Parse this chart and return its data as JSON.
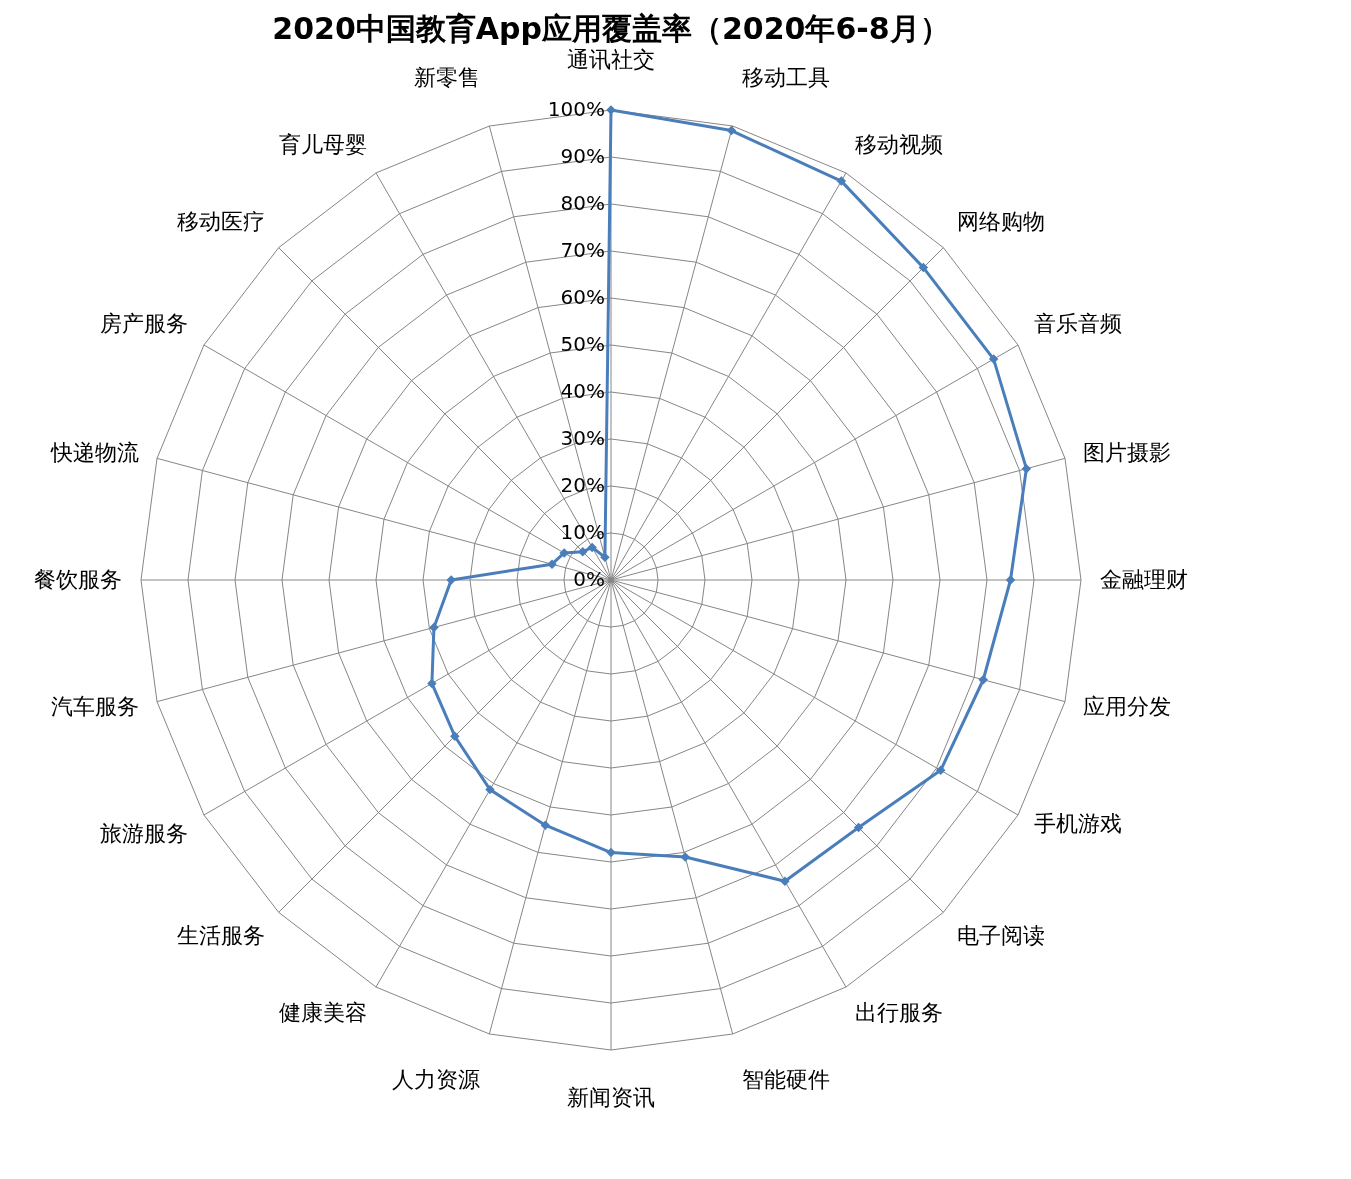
{
  "chart_data": {
    "type": "radar",
    "title": "2020中国教育App应用覆盖率（2020年6-8月）",
    "categories": [
      "通讯社交",
      "移动工具",
      "移动视频",
      "网络购物",
      "音乐音频",
      "图片摄影",
      "金融理财",
      "应用分发",
      "手机游戏",
      "电子阅读",
      "出行服务",
      "智能硬件",
      "新闻资讯",
      "人力资源",
      "健康美容",
      "生活服务",
      "旅游服务",
      "汽车服务",
      "餐饮服务",
      "快递物流",
      "房产服务",
      "移动医疗",
      "育儿母婴",
      "新零售"
    ],
    "series": [
      {
        "color": "#4a7ebb",
        "values": [
          100,
          99,
          98,
          94,
          94,
          91.5,
          85,
          82,
          81,
          74.5,
          74,
          61,
          58,
          54,
          51.5,
          47,
          44,
          39,
          34,
          13,
          11.5,
          8.5,
          8,
          5
        ]
      }
    ],
    "ylim": [
      0,
      100
    ],
    "yticks": [
      {
        "value": 0,
        "label": "0%"
      },
      {
        "value": 10,
        "label": "10%"
      },
      {
        "value": 20,
        "label": "20%"
      },
      {
        "value": 30,
        "label": "30%"
      },
      {
        "value": 40,
        "label": "40%"
      },
      {
        "value": 50,
        "label": "50%"
      },
      {
        "value": 60,
        "label": "60%"
      },
      {
        "value": 70,
        "label": "70%"
      },
      {
        "value": 80,
        "label": "80%"
      },
      {
        "value": 90,
        "label": "90%"
      },
      {
        "value": 100,
        "label": "100%"
      }
    ],
    "grid": true,
    "marker": "diamond",
    "line_style": "solid"
  }
}
